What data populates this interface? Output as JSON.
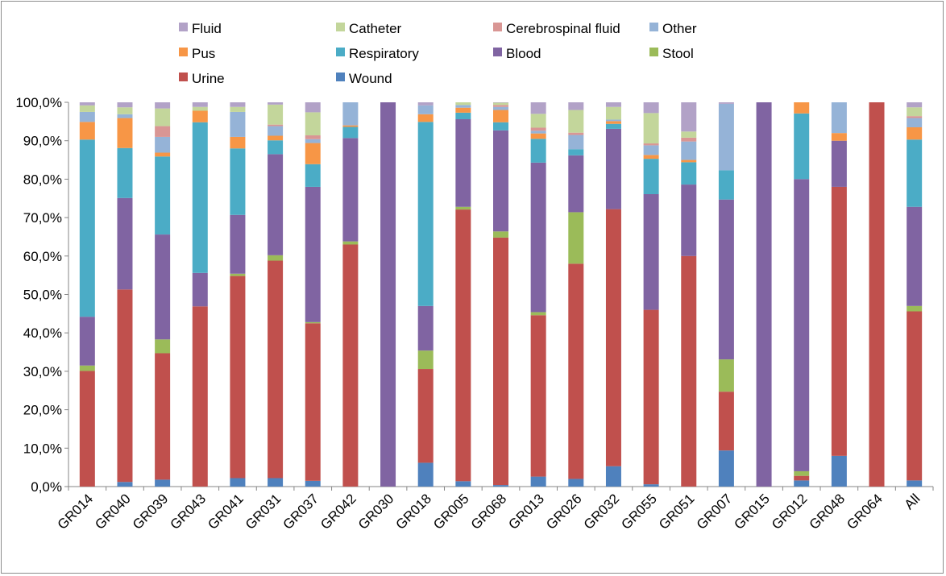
{
  "chart_data": {
    "type": "bar",
    "stacked": true,
    "percent_stacked": true,
    "categories": [
      "GR014",
      "GR040",
      "GR039",
      "GR043",
      "GR041",
      "GR031",
      "GR037",
      "GR042",
      "GR030",
      "GR018",
      "GR005",
      "GR068",
      "GR013",
      "GR026",
      "GR032",
      "GR055",
      "GR051",
      "GR007",
      "GR015",
      "GR012",
      "GR048",
      "GR064",
      "All"
    ],
    "y_ticks": [
      "0,0%",
      "10,0%",
      "20,0%",
      "30,0%",
      "40,0%",
      "50,0%",
      "60,0%",
      "70,0%",
      "80,0%",
      "90,0%",
      "100,0%"
    ],
    "ylim": [
      0,
      100
    ],
    "grid": false,
    "legend_position": "top",
    "series": [
      {
        "name": "Wound",
        "color": "#4f81bd",
        "values": [
          0.0,
          1.2,
          1.8,
          0.0,
          2.2,
          2.2,
          1.5,
          0.0,
          0.0,
          6.2,
          1.4,
          0.4,
          2.6,
          2.0,
          5.3,
          0.6,
          0.0,
          9.4,
          0.0,
          1.6,
          8.0,
          0.0,
          1.6
        ]
      },
      {
        "name": "Urine",
        "color": "#c0504d",
        "values": [
          30.1,
          50.1,
          32.9,
          46.9,
          52.6,
          56.6,
          41.0,
          63.0,
          0.0,
          24.4,
          70.7,
          64.4,
          42.0,
          56.0,
          66.9,
          45.4,
          60.0,
          15.3,
          0.0,
          1.2,
          70.0,
          100.0,
          44.0
        ]
      },
      {
        "name": "Stool",
        "color": "#9bbb59",
        "values": [
          1.4,
          0.0,
          3.6,
          0.0,
          0.6,
          1.4,
          0.3,
          0.8,
          0.0,
          4.8,
          0.7,
          1.6,
          0.8,
          13.4,
          0.0,
          0.0,
          0.0,
          8.4,
          0.0,
          1.2,
          0.0,
          0.0,
          1.4
        ]
      },
      {
        "name": "Blood",
        "color": "#8064a2",
        "values": [
          12.7,
          23.8,
          27.3,
          8.7,
          15.3,
          26.3,
          35.2,
          26.9,
          100.0,
          11.6,
          22.8,
          26.3,
          38.9,
          14.8,
          20.9,
          30.1,
          18.6,
          41.6,
          100.0,
          76.1,
          12.0,
          0.0,
          25.8
        ]
      },
      {
        "name": "Respiratory",
        "color": "#4bacc6",
        "values": [
          46.1,
          13.0,
          20.3,
          39.2,
          17.3,
          3.6,
          5.9,
          2.9,
          0.0,
          47.9,
          1.7,
          2.1,
          6.2,
          1.6,
          1.3,
          9.2,
          5.8,
          7.6,
          0.0,
          17.1,
          0.0,
          0.0,
          17.5
        ]
      },
      {
        "name": "Pus",
        "color": "#f79646",
        "values": [
          4.6,
          7.8,
          1.0,
          3.0,
          3.0,
          1.2,
          5.5,
          0.4,
          0.0,
          2.0,
          1.3,
          3.2,
          1.4,
          0.0,
          0.7,
          1.0,
          0.6,
          0.0,
          0.0,
          2.9,
          2.0,
          0.0,
          3.2
        ]
      },
      {
        "name": "Other",
        "color": "#95b3d7",
        "values": [
          2.6,
          1.0,
          4.1,
          0.0,
          6.5,
          2.5,
          1.0,
          6.0,
          0.0,
          2.3,
          0.7,
          0.8,
          0.7,
          3.7,
          0.4,
          2.5,
          4.8,
          17.3,
          0.0,
          0.0,
          8.0,
          0.0,
          2.4
        ]
      },
      {
        "name": "Cerebrospinal fluid",
        "color": "#d99694",
        "values": [
          0.0,
          0.0,
          2.8,
          0.0,
          0.0,
          0.4,
          1.0,
          0.0,
          0.0,
          0.0,
          0.0,
          0.5,
          0.8,
          0.6,
          0.0,
          0.5,
          1.0,
          0.0,
          0.0,
          0.0,
          0.0,
          0.0,
          0.5
        ]
      },
      {
        "name": "Catheter",
        "color": "#c3d69b",
        "values": [
          1.7,
          1.8,
          4.6,
          1.0,
          1.3,
          5.2,
          6.0,
          0.0,
          0.0,
          0.0,
          0.7,
          0.6,
          3.6,
          5.9,
          3.3,
          7.9,
          1.6,
          0.0,
          0.0,
          0.0,
          0.0,
          0.0,
          2.3
        ]
      },
      {
        "name": "Fluid",
        "color": "#b2a2c7",
        "values": [
          0.8,
          1.3,
          1.6,
          1.2,
          1.2,
          0.6,
          2.6,
          0.0,
          0.0,
          0.8,
          0.0,
          0.1,
          3.0,
          2.0,
          1.2,
          2.8,
          7.6,
          0.4,
          0.0,
          0.0,
          0.0,
          0.0,
          1.3
        ]
      }
    ],
    "legend_order": [
      "Fluid",
      "Catheter",
      "Cerebrospinal fluid",
      "Other",
      "Pus",
      "Respiratory",
      "Blood",
      "Stool",
      "Urine",
      "Wound"
    ]
  }
}
